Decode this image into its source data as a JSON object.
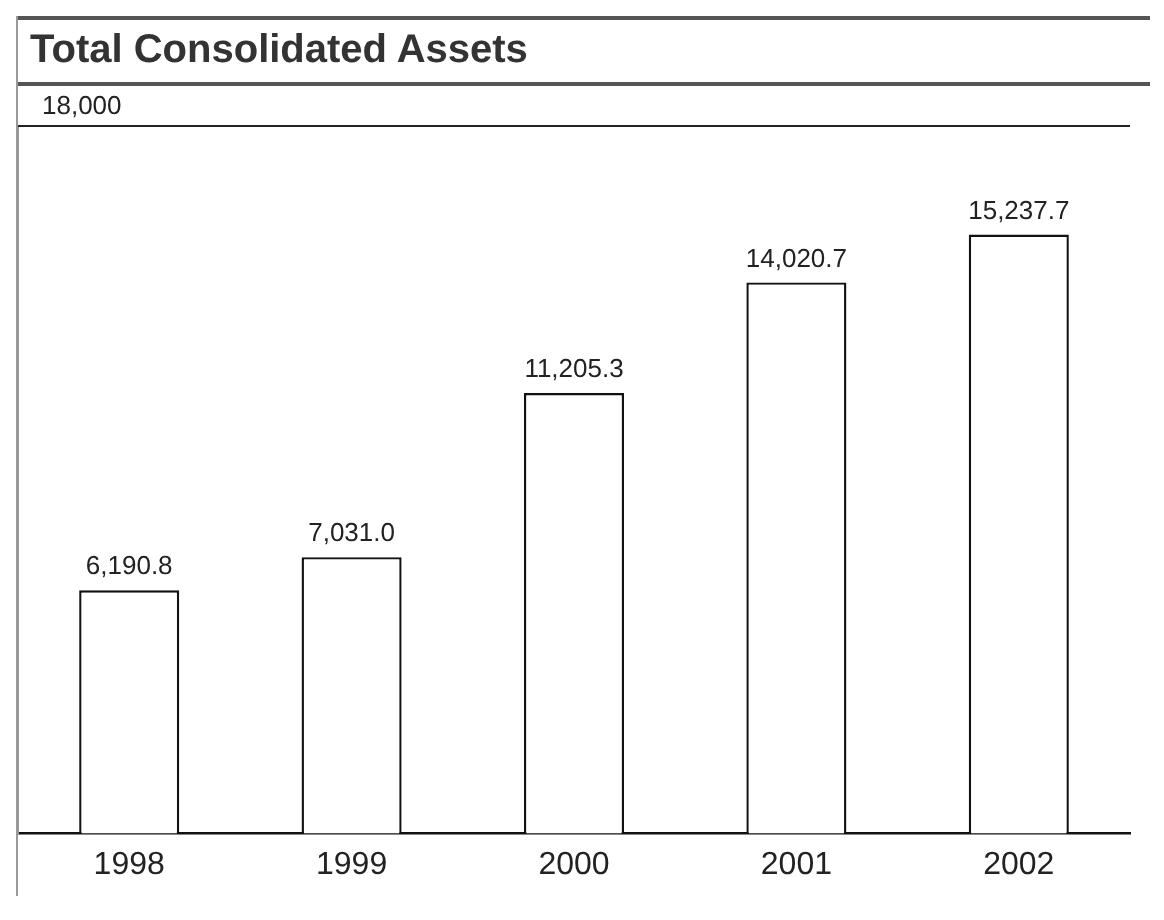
{
  "chart_data": {
    "type": "bar",
    "title": "Total Consolidated Assets",
    "categories": [
      "1998",
      "1999",
      "2000",
      "2001",
      "2002"
    ],
    "values": [
      6190.8,
      7031.0,
      11205.3,
      14020.7,
      15237.7
    ],
    "value_labels": [
      "6,190.8",
      "7,031.0",
      "11,205.3",
      "14,020.7",
      "15,237.7"
    ],
    "color": "#ffffff",
    "ylim": [
      0,
      18000
    ],
    "ref_lines": [
      {
        "axis": "y",
        "value": 18000,
        "label": "18,000",
        "color": "#222222"
      }
    ],
    "legend": false
  }
}
